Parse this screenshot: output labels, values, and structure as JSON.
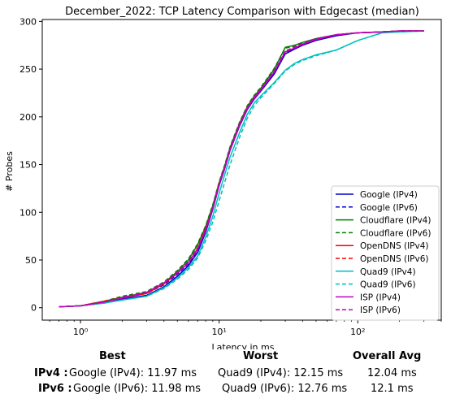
{
  "chart_data": {
    "type": "line",
    "title": "December_2022: TCP Latency Comparison with Edgecast (median)",
    "xlabel": "Latency in ms",
    "ylabel": "# Probes",
    "xscale": "log",
    "xlim": [
      0.53,
      400
    ],
    "ylim": [
      -13,
      302
    ],
    "x_ticks": [
      1,
      10,
      100
    ],
    "x_tick_labels": [
      "10⁰",
      "10¹",
      "10²"
    ],
    "y_ticks": [
      0,
      50,
      100,
      150,
      200,
      250,
      300
    ],
    "y_tick_labels": [
      "0",
      "50",
      "100",
      "150",
      "200",
      "250",
      "300"
    ],
    "grid": false,
    "legend_position": "lower-right",
    "series": [
      {
        "name": "Google (IPv4)",
        "color": "#0000cc",
        "style": "solid",
        "x": [
          0.7,
          1.0,
          1.5,
          2.0,
          3.0,
          4.0,
          5.0,
          6.0,
          7.0,
          8.0,
          9.0,
          10.0,
          11.0,
          12.0,
          14.0,
          16.0,
          18.0,
          20.0,
          25.0,
          30.0,
          35.0,
          40.0,
          50.0,
          70.0,
          100.0,
          150.0,
          200.0,
          300.0
        ],
        "y": [
          1,
          2,
          5,
          9,
          13,
          22,
          33,
          44,
          58,
          79,
          103,
          128,
          146,
          165,
          190,
          208,
          219,
          227,
          245,
          266,
          271,
          275,
          280,
          285,
          288,
          289,
          290,
          290
        ]
      },
      {
        "name": "Google (IPv6)",
        "color": "#0000cc",
        "style": "dashed",
        "x": [
          0.7,
          1.0,
          1.5,
          2.0,
          3.0,
          4.0,
          5.0,
          6.0,
          7.0,
          8.0,
          9.0,
          10.0,
          11.0,
          12.0,
          14.0,
          16.0,
          18.0,
          20.0,
          25.0,
          30.0,
          35.0,
          40.0,
          50.0,
          70.0,
          100.0,
          150.0,
          200.0,
          300.0
        ],
        "y": [
          1,
          2,
          6,
          10,
          15,
          24,
          35,
          46,
          60,
          82,
          106,
          130,
          148,
          167,
          192,
          210,
          221,
          229,
          247,
          267,
          272,
          276,
          281,
          286,
          288,
          289,
          290,
          290
        ]
      },
      {
        "name": "Cloudflare (IPv4)",
        "color": "#008000",
        "style": "solid",
        "x": [
          0.7,
          1.0,
          1.5,
          2.0,
          3.0,
          4.0,
          5.0,
          6.0,
          7.0,
          8.0,
          9.0,
          10.0,
          11.0,
          12.0,
          14.0,
          16.0,
          18.0,
          20.0,
          25.0,
          30.0,
          35.0,
          40.0,
          50.0,
          70.0,
          100.0,
          150.0,
          200.0,
          300.0
        ],
        "y": [
          1,
          2,
          7,
          11,
          16,
          26,
          38,
          50,
          66,
          85,
          107,
          131,
          149,
          168,
          193,
          211,
          222,
          230,
          250,
          273,
          275,
          278,
          282,
          286,
          288,
          289,
          290,
          290
        ]
      },
      {
        "name": "Cloudflare (IPv6)",
        "color": "#008000",
        "style": "dashed",
        "x": [
          0.7,
          1.0,
          1.5,
          2.0,
          3.0,
          4.0,
          5.0,
          6.0,
          7.0,
          8.0,
          9.0,
          10.0,
          11.0,
          12.0,
          14.0,
          16.0,
          18.0,
          20.0,
          25.0,
          30.0,
          35.0,
          40.0,
          50.0,
          70.0,
          100.0,
          150.0,
          200.0,
          300.0
        ],
        "y": [
          1,
          2,
          7,
          12,
          17,
          27,
          39,
          51,
          67,
          86,
          108,
          132,
          150,
          169,
          194,
          212,
          223,
          231,
          251,
          272,
          274,
          277,
          281,
          286,
          288,
          289,
          290,
          290
        ]
      },
      {
        "name": "OpenDNS (IPv4)",
        "color": "#ff0000",
        "style": "solid",
        "x": [
          0.7,
          1.0,
          1.5,
          2.0,
          3.0,
          4.0,
          5.0,
          6.0,
          7.0,
          8.0,
          9.0,
          10.0,
          11.0,
          12.0,
          14.0,
          16.0,
          18.0,
          20.0,
          25.0,
          30.0,
          35.0,
          40.0,
          50.0,
          70.0,
          100.0,
          150.0,
          200.0,
          300.0
        ],
        "y": [
          1,
          2,
          6,
          10,
          15,
          25,
          36,
          47,
          62,
          82,
          104,
          129,
          147,
          166,
          191,
          209,
          220,
          228,
          247,
          268,
          272,
          276,
          281,
          286,
          288,
          289,
          290,
          290
        ]
      },
      {
        "name": "OpenDNS (IPv6)",
        "color": "#ff0000",
        "style": "dashed",
        "x": [
          0.7,
          1.0,
          1.5,
          2.0,
          3.0,
          4.0,
          5.0,
          6.0,
          7.0,
          8.0,
          9.0,
          10.0,
          11.0,
          12.0,
          14.0,
          16.0,
          18.0,
          20.0,
          25.0,
          30.0,
          35.0,
          40.0,
          50.0,
          70.0,
          100.0,
          150.0,
          200.0,
          300.0
        ],
        "y": [
          1,
          2,
          7,
          11,
          16,
          26,
          37,
          48,
          63,
          83,
          105,
          130,
          148,
          167,
          192,
          210,
          221,
          229,
          248,
          269,
          273,
          277,
          282,
          286,
          288,
          289,
          290,
          290
        ]
      },
      {
        "name": "Quad9 (IPv4)",
        "color": "#00bfbf",
        "style": "solid",
        "x": [
          0.7,
          1.0,
          1.5,
          2.0,
          3.0,
          4.0,
          5.0,
          6.0,
          7.0,
          8.0,
          9.0,
          10.0,
          11.0,
          12.0,
          14.0,
          16.0,
          18.0,
          20.0,
          25.0,
          30.0,
          35.0,
          40.0,
          50.0,
          70.0,
          100.0,
          150.0,
          200.0,
          300.0
        ],
        "y": [
          1,
          2,
          5,
          8,
          12,
          21,
          31,
          42,
          54,
          74,
          96,
          120,
          140,
          158,
          183,
          203,
          215,
          222,
          236,
          249,
          256,
          260,
          265,
          270,
          280,
          288,
          289,
          290
        ]
      },
      {
        "name": "Quad9 (IPv6)",
        "color": "#00bfbf",
        "style": "dashed",
        "x": [
          0.7,
          1.0,
          1.5,
          2.0,
          3.0,
          4.0,
          5.0,
          6.0,
          7.0,
          8.0,
          9.0,
          10.0,
          11.0,
          12.0,
          14.0,
          16.0,
          18.0,
          20.0,
          25.0,
          30.0,
          35.0,
          40.0,
          50.0,
          70.0,
          100.0,
          150.0,
          200.0,
          300.0
        ],
        "y": [
          1,
          2,
          5,
          8,
          12,
          20,
          30,
          40,
          52,
          70,
          90,
          112,
          132,
          150,
          178,
          199,
          212,
          220,
          235,
          248,
          255,
          259,
          264,
          270,
          280,
          288,
          289,
          290
        ]
      },
      {
        "name": "ISP (IPv4)",
        "color": "#bf00bf",
        "style": "solid",
        "x": [
          0.7,
          1.0,
          1.5,
          2.0,
          3.0,
          4.0,
          5.0,
          6.0,
          7.0,
          8.0,
          9.0,
          10.0,
          11.0,
          12.0,
          14.0,
          16.0,
          18.0,
          20.0,
          25.0,
          30.0,
          35.0,
          40.0,
          50.0,
          70.0,
          100.0,
          150.0,
          200.0,
          300.0
        ],
        "y": [
          1,
          2,
          6,
          10,
          16,
          26,
          36,
          47,
          61,
          81,
          104,
          129,
          147,
          166,
          191,
          209,
          220,
          228,
          247,
          268,
          272,
          276,
          281,
          286,
          288,
          289,
          290,
          290
        ]
      },
      {
        "name": "ISP (IPv6)",
        "color": "#bf00bf",
        "style": "dashed",
        "x": [
          0.7,
          1.0,
          1.5,
          2.0,
          3.0,
          4.0,
          5.0,
          6.0,
          7.0,
          8.0,
          9.0,
          10.0,
          11.0,
          12.0,
          14.0,
          16.0,
          18.0,
          20.0,
          25.0,
          30.0,
          35.0,
          40.0,
          50.0,
          70.0,
          100.0,
          150.0,
          200.0,
          300.0
        ],
        "y": [
          1,
          2,
          6,
          11,
          16,
          26,
          37,
          48,
          62,
          82,
          105,
          130,
          148,
          167,
          192,
          210,
          221,
          229,
          248,
          269,
          273,
          277,
          282,
          286,
          288,
          289,
          290,
          290
        ]
      }
    ]
  },
  "summary": {
    "headers": {
      "best": "Best",
      "worst": "Worst",
      "avg": "Overall Avg"
    },
    "rows": [
      {
        "label": "IPv4 :",
        "best": "Google (IPv4): 11.97 ms",
        "worst": "Quad9 (IPv4): 12.15 ms",
        "avg": "12.04 ms"
      },
      {
        "label": "IPv6 :",
        "best": "Google (IPv6): 11.98 ms",
        "worst": "Quad9 (IPv6): 12.76 ms",
        "avg": "12.1 ms"
      }
    ]
  }
}
